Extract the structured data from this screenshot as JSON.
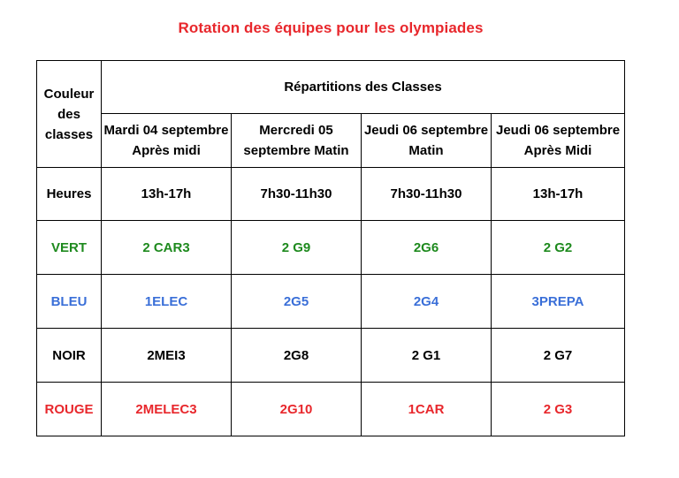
{
  "title": "Rotation des équipes pour les olympiades",
  "table": {
    "corner_label": "Couleur des classes",
    "group_header": "Répartitions des Classes",
    "days": [
      {
        "label": "Mardi 04 septembre Après midi"
      },
      {
        "label": "Mercredi 05 septembre Matin"
      },
      {
        "label": "Jeudi 06 septembre Matin"
      },
      {
        "label": "Jeudi 06 septembre Après Midi"
      }
    ],
    "hours_row": {
      "label": "Heures",
      "values": [
        "13h-17h",
        "7h30-11h30",
        "7h30-11h30",
        "13h-17h"
      ]
    },
    "rows": [
      {
        "color_name": "VERT",
        "color_hex": "#1e8a1e",
        "values": [
          "2 CAR3",
          "2 G9",
          "2G6",
          "2 G2"
        ]
      },
      {
        "color_name": "BLEU",
        "color_hex": "#3a6fd8",
        "values": [
          "1ELEC",
          "2G5",
          "2G4",
          "3PREPA"
        ]
      },
      {
        "color_name": "NOIR",
        "color_hex": "#000000",
        "values": [
          "2MEI3",
          "2G8",
          "2 G1",
          "2 G7"
        ]
      },
      {
        "color_name": "ROUGE",
        "color_hex": "#e8272c",
        "values": [
          "2MELEC3",
          "2G10",
          "1CAR",
          "2 G3"
        ]
      }
    ]
  }
}
